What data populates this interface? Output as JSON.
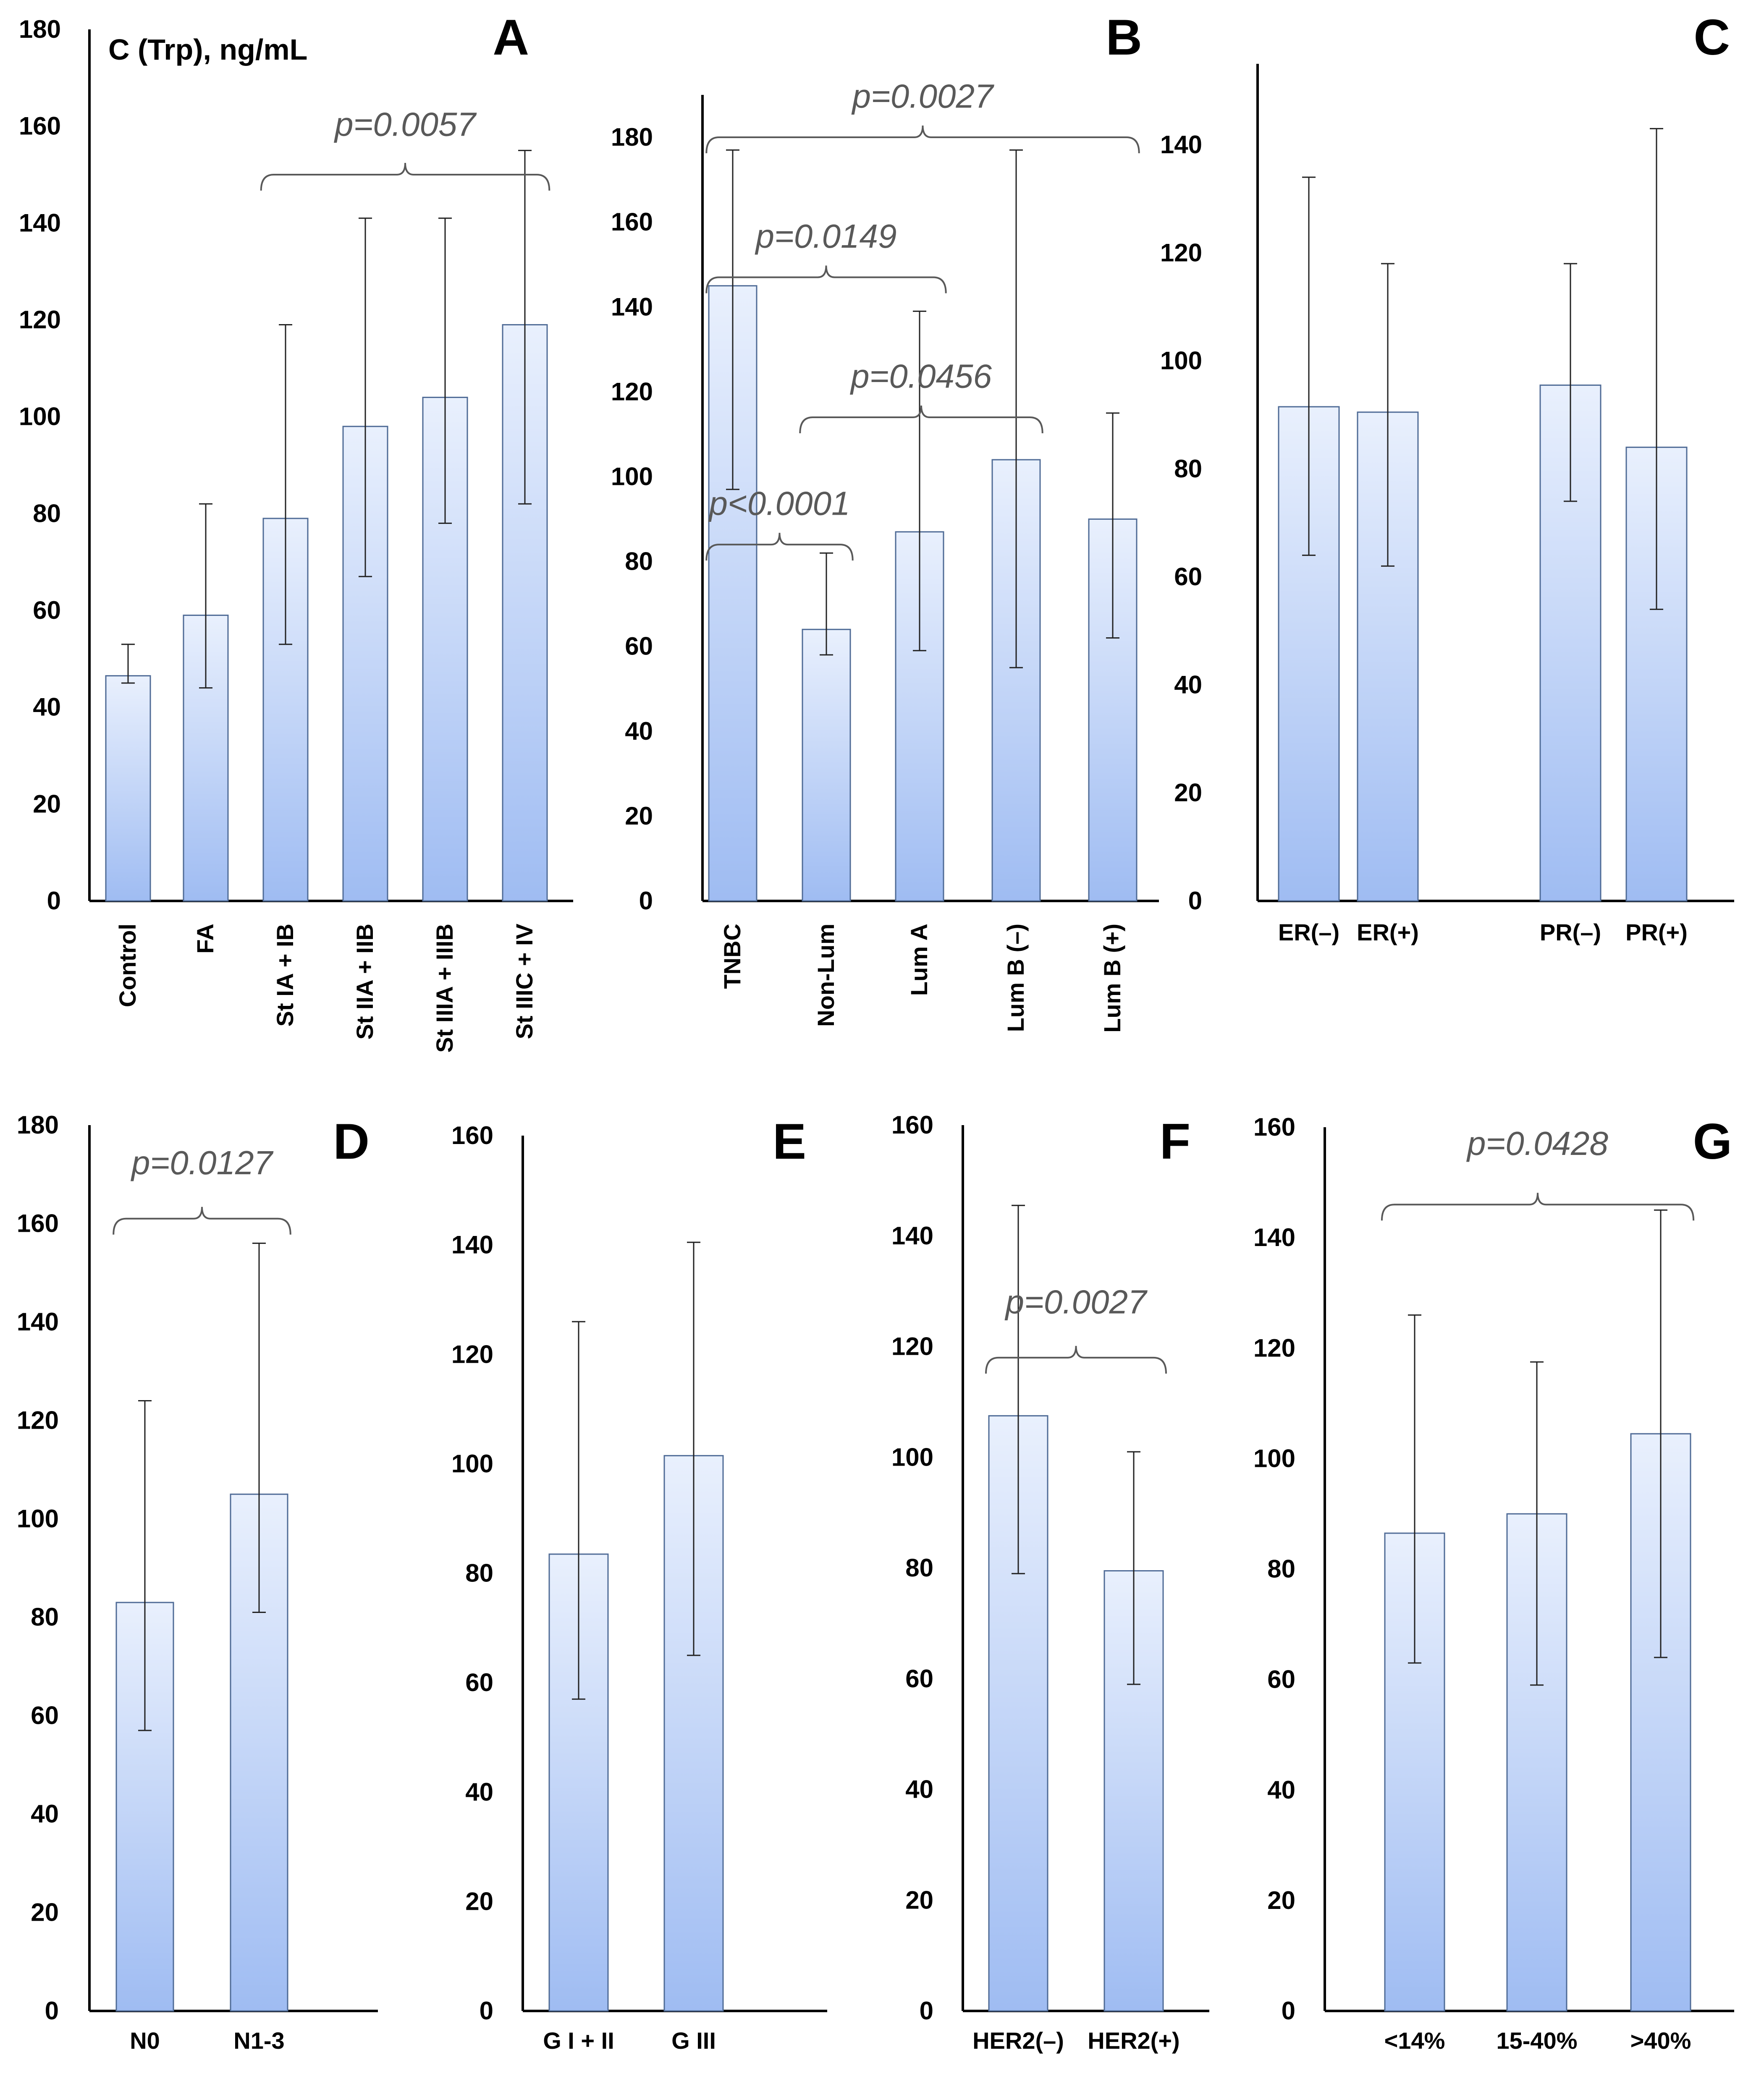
{
  "figure_label": "C (Trp), ng/mL",
  "chart_data": [
    {
      "panel": "A",
      "type": "bar",
      "ylabel": "C (Trp), ng/mL",
      "ylim": [
        0,
        180
      ],
      "yticks": [
        0,
        20,
        40,
        60,
        80,
        100,
        120,
        140,
        160,
        180
      ],
      "categories": [
        "Control",
        "FA",
        "St IA + IB",
        "St IIA + IIB",
        "St IIIA + IIIB",
        "St IIIC + IV"
      ],
      "values": [
        46.5,
        59,
        79,
        98,
        104,
        119
      ],
      "error_low": [
        45,
        44,
        53,
        67,
        78,
        82
      ],
      "error_high": [
        53,
        82,
        119,
        141,
        141,
        155
      ],
      "rotate_labels": true,
      "annotations": [
        {
          "text": "p=0.0057",
          "from": 2,
          "to": 5,
          "y": 150,
          "label_y": 158
        }
      ]
    },
    {
      "panel": "B",
      "type": "bar",
      "ylim": [
        0,
        190
      ],
      "yticks": [
        0,
        20,
        40,
        60,
        80,
        100,
        120,
        140,
        160,
        180
      ],
      "categories": [
        "TNBC",
        "Non-Lum",
        "Lum A",
        "Lum B (–)",
        "Lum B (+)"
      ],
      "values": [
        145,
        64,
        87,
        104,
        90
      ],
      "error_low": [
        97,
        58,
        59,
        55,
        62
      ],
      "error_high": [
        177,
        82,
        139,
        177,
        115
      ],
      "rotate_labels": true,
      "annotations": [
        {
          "text": "p=0.0027",
          "from": 0,
          "to": 4,
          "y": 180,
          "label_y": 187
        },
        {
          "text": "p=0.0149",
          "from": 0,
          "to": 2,
          "y": 147,
          "label_y": 154
        },
        {
          "text": "p=0.0456",
          "from": 1,
          "to": 3,
          "y": 114,
          "label_y": 121
        },
        {
          "text": "p<0.0001",
          "from": 0,
          "to": 1,
          "y": 84,
          "label_y": 91
        }
      ]
    },
    {
      "panel": "C",
      "type": "bar",
      "ylim": [
        0,
        155
      ],
      "yticks": [
        0,
        20,
        40,
        60,
        80,
        100,
        120,
        140
      ],
      "categories": [
        "ER(–)",
        "ER(+)",
        "PR(–)",
        "PR(+)"
      ],
      "values": [
        91.5,
        90.5,
        95.5,
        84
      ],
      "error_low": [
        64,
        62,
        74,
        54
      ],
      "error_high": [
        134,
        118,
        118,
        143
      ],
      "rotate_labels": false,
      "annotations": []
    },
    {
      "panel": "D",
      "type": "bar",
      "ylim": [
        0,
        180
      ],
      "yticks": [
        0,
        20,
        40,
        60,
        80,
        100,
        120,
        140,
        160,
        180
      ],
      "categories": [
        "N0",
        "N1-3"
      ],
      "values": [
        83,
        105
      ],
      "error_low": [
        57,
        81
      ],
      "error_high": [
        124,
        156
      ],
      "rotate_labels": false,
      "annotations": [
        {
          "text": "p=0.0127",
          "from": 0,
          "to": 1,
          "y": 161,
          "label_y": 170
        }
      ]
    },
    {
      "panel": "E",
      "type": "bar",
      "ylim": [
        0,
        160
      ],
      "yticks": [
        0,
        20,
        40,
        60,
        80,
        100,
        120,
        140,
        160
      ],
      "categories": [
        "G I + II",
        "G III"
      ],
      "values": [
        83.5,
        101.5
      ],
      "error_low": [
        57,
        65
      ],
      "error_high": [
        126,
        140.5
      ],
      "rotate_labels": false,
      "annotations": []
    },
    {
      "panel": "F",
      "type": "bar",
      "ylim": [
        0,
        160
      ],
      "yticks": [
        0,
        20,
        40,
        60,
        80,
        100,
        120,
        140,
        160
      ],
      "categories": [
        "HER2(–)",
        "HER2(+)"
      ],
      "values": [
        107.5,
        79.5
      ],
      "error_low": [
        79,
        59
      ],
      "error_high": [
        145.5,
        101
      ],
      "rotate_labels": false,
      "annotations": [
        {
          "text": "p=0.0027",
          "from": 0,
          "to": 1,
          "y": 118,
          "label_y": 126
        }
      ]
    },
    {
      "panel": "G",
      "type": "bar",
      "ylim": [
        0,
        160
      ],
      "yticks": [
        0,
        20,
        40,
        60,
        80,
        100,
        120,
        140,
        160
      ],
      "categories": [
        "<14%",
        "15-40%",
        ">40%"
      ],
      "values": [
        86.5,
        90,
        104.5
      ],
      "error_low": [
        63,
        59,
        64
      ],
      "error_high": [
        126,
        117.5,
        145
      ],
      "rotate_labels": false,
      "annotations": [
        {
          "text": "p=0.0428",
          "from": 0,
          "to": 2,
          "y": 146,
          "label_y": 155
        }
      ]
    }
  ]
}
